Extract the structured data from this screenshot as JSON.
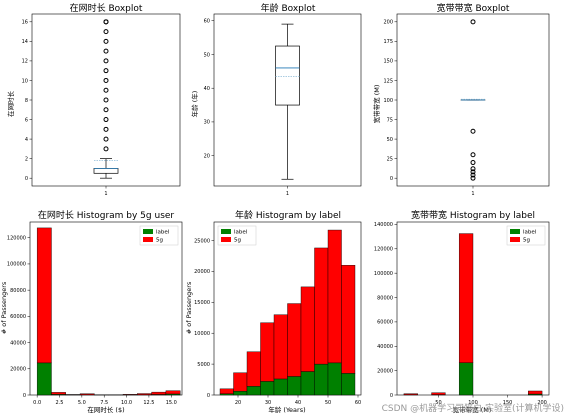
{
  "watermark": "CSDN @机器学习司猫白 实验室(计算机学设)",
  "chart_data": [
    {
      "type": "boxplot",
      "title": "在网时长 Boxplot",
      "xlabel": "",
      "ylabel": "在网时长",
      "ylim": [
        -0.8,
        16.8
      ],
      "yticks": [
        0,
        2,
        4,
        6,
        8,
        10,
        12,
        14,
        16
      ],
      "xticklabels": [
        "1"
      ],
      "box": {
        "q1": 0.5,
        "median": 1.0,
        "q3": 1.0,
        "whisker_low": 0,
        "whisker_high": 2,
        "mean": 1.8
      },
      "outliers": [
        3,
        4,
        5,
        6,
        7,
        8,
        9,
        10,
        11,
        12,
        13,
        14,
        15,
        16,
        16
      ]
    },
    {
      "type": "boxplot",
      "title": "年龄 Boxplot",
      "xlabel": "",
      "ylabel": "年龄 (年)",
      "ylim": [
        11,
        62
      ],
      "yticks": [
        20,
        30,
        40,
        50,
        60
      ],
      "xticklabels": [
        "1"
      ],
      "box": {
        "q1": 35,
        "median": 46,
        "q3": 52.5,
        "whisker_low": 13,
        "whisker_high": 59,
        "mean": 43.5
      },
      "outliers": []
    },
    {
      "type": "boxplot",
      "title": "宽带带宽 Boxplot",
      "xlabel": "",
      "ylabel": "宽带带宽 (M)",
      "ylim": [
        -10,
        210
      ],
      "yticks": [
        0,
        25,
        50,
        75,
        100,
        125,
        150,
        175,
        200
      ],
      "xticklabels": [
        "1"
      ],
      "box": {
        "q1": 100,
        "median": 100,
        "q3": 100,
        "whisker_low": 100,
        "whisker_high": 100,
        "mean": 101
      },
      "outliers": [
        0,
        4,
        8,
        12,
        20,
        30,
        60,
        200
      ]
    },
    {
      "type": "bar",
      "title": "在网时长 Histogram by 5g user",
      "xlabel": "在网时长 ($)",
      "ylabel": "# of Passengers",
      "xlim": [
        -0.8,
        16.2
      ],
      "ylim": [
        0,
        132000
      ],
      "xticks": [
        0,
        2.5,
        5,
        7.5,
        10,
        12.5,
        15
      ],
      "xticklabels": [
        "0.0",
        "2.5",
        "5.0",
        "7.5",
        "10.0",
        "12.5",
        "15.0"
      ],
      "yticks": [
        0,
        20000,
        40000,
        60000,
        80000,
        100000,
        120000
      ],
      "bin_edges": [
        0,
        1.6,
        3.2,
        4.8,
        6.4,
        8.0,
        9.6,
        11.2,
        12.8,
        14.4,
        16
      ],
      "series": [
        {
          "name": "label",
          "color": "#008000",
          "values": [
            24500,
            500,
            100,
            200,
            50,
            50,
            100,
            200,
            400,
            800
          ]
        },
        {
          "name": "5g",
          "color": "#ff0000",
          "values": [
            103000,
            1500,
            300,
            800,
            150,
            150,
            400,
            900,
            1800,
            2500
          ]
        }
      ],
      "legend_position": "top-right"
    },
    {
      "type": "bar",
      "title": "年龄 Histogram by label",
      "xlabel": "年龄 (Years)",
      "ylabel": "# of Passengers",
      "xlim": [
        12,
        61
      ],
      "ylim": [
        0,
        28000
      ],
      "xticks": [
        20,
        30,
        40,
        50,
        60
      ],
      "xticklabels": [
        "20",
        "30",
        "40",
        "50",
        "60"
      ],
      "yticks": [
        0,
        5000,
        10000,
        15000,
        20000,
        25000
      ],
      "bin_edges": [
        14,
        18.5,
        23,
        27.5,
        32,
        36.5,
        41,
        45.5,
        50,
        54.5,
        59
      ],
      "series": [
        {
          "name": "label",
          "color": "#008000",
          "values": [
            200,
            600,
            1400,
            2200,
            2600,
            3000,
            3800,
            5000,
            5200,
            3500
          ]
        },
        {
          "name": "5g",
          "color": "#ff0000",
          "values": [
            800,
            3000,
            5600,
            9500,
            10400,
            11800,
            13700,
            18800,
            21500,
            17500
          ]
        }
      ],
      "legend_position": "top-left"
    },
    {
      "type": "bar",
      "title": "宽带带宽 Histogram by label",
      "xlabel": "宽带带宽 (M)",
      "ylabel": "",
      "xlim": [
        -10,
        210
      ],
      "ylim": [
        0,
        142000
      ],
      "xticks": [
        50,
        100,
        150,
        200
      ],
      "xticklabels": [
        "50",
        "100",
        "150",
        "200"
      ],
      "yticks": [
        0,
        20000,
        40000,
        60000,
        80000,
        100000,
        120000,
        140000
      ],
      "bin_edges": [
        0,
        20,
        40,
        60,
        80,
        100,
        120,
        140,
        160,
        180,
        200
      ],
      "series": [
        {
          "name": "label",
          "color": "#008000",
          "values": [
            200,
            0,
            300,
            0,
            26500,
            0,
            0,
            0,
            0,
            800
          ]
        },
        {
          "name": "5g",
          "color": "#ff0000",
          "values": [
            900,
            0,
            1600,
            0,
            106000,
            0,
            0,
            0,
            0,
            2500
          ]
        }
      ],
      "legend_position": "top-right"
    }
  ]
}
